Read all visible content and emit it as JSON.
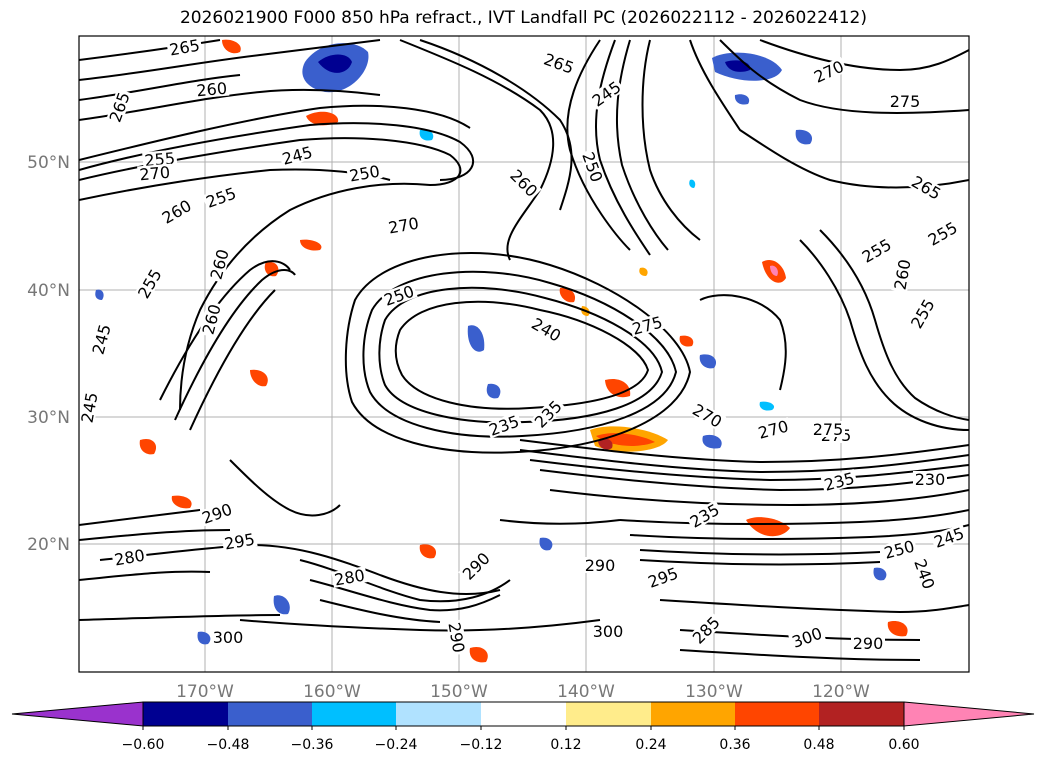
{
  "title": "2026021900 F000 850 hPa refract., IVT Landfall PC (2026022112 - 2026022412)",
  "map": {
    "lat_ticks": [
      "50°N",
      "40°N",
      "30°N",
      "20°N"
    ],
    "lon_ticks": [
      "170°W",
      "160°W",
      "150°W",
      "140°W",
      "130°W",
      "120°W"
    ],
    "contour_labels": [
      "265",
      "260",
      "265",
      "255",
      "270",
      "245",
      "250",
      "260",
      "255",
      "260",
      "270",
      "260",
      "255",
      "245",
      "250",
      "250",
      "245",
      "260",
      "245",
      "265",
      "270",
      "275",
      "265",
      "255",
      "260",
      "255",
      "240",
      "275",
      "270",
      "275",
      "235",
      "235",
      "275",
      "270",
      "235",
      "230",
      "290",
      "295",
      "290",
      "280",
      "280",
      "290",
      "295",
      "300",
      "285",
      "300",
      "300",
      "290",
      "290",
      "255",
      "250",
      "245",
      "240",
      "235"
    ]
  },
  "colorbar": {
    "ticks": [
      "−0.60",
      "−0.48",
      "−0.36",
      "−0.24",
      "−0.12",
      "0.12",
      "0.24",
      "0.36",
      "0.48",
      "0.60"
    ],
    "colors": [
      "#9a32cd",
      "#000091",
      "#3a5fcd",
      "#00bfff",
      "#b0e2ff",
      "#ffffff",
      "#ffec8b",
      "#ffa500",
      "#ff4500",
      "#b22222",
      "#ff83b4"
    ]
  }
}
